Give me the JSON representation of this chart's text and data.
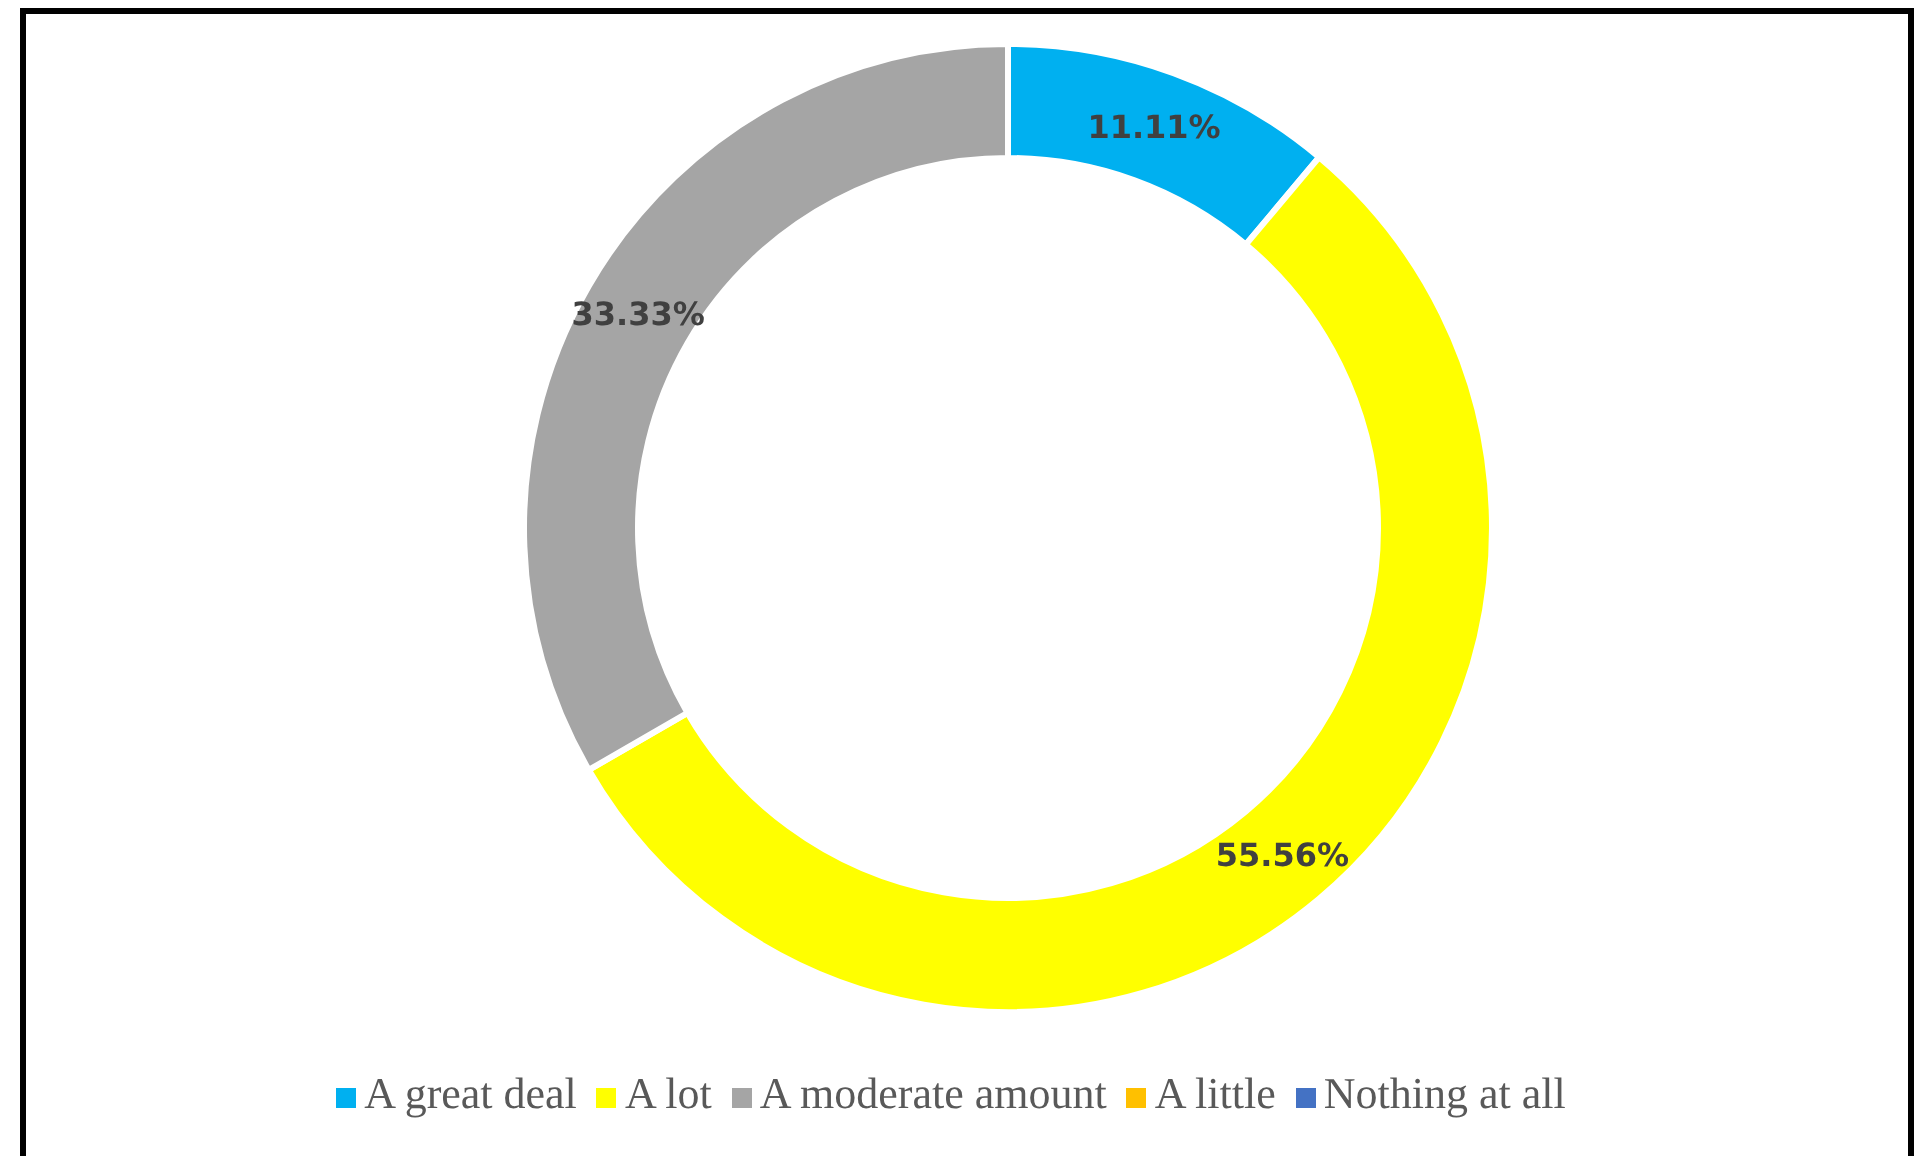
{
  "chart_data": {
    "type": "donut",
    "categories": [
      "A great deal",
      "A lot",
      "A moderate amount",
      "A little",
      "Nothing at all"
    ],
    "values": [
      11.11,
      55.56,
      33.33,
      0,
      0
    ],
    "colors": [
      "#00b0f0",
      "#ffff00",
      "#a5a5a5",
      "#ffc000",
      "#4472c4"
    ],
    "value_labels": [
      "11.11%",
      "55.56%",
      "33.33%",
      null,
      null
    ],
    "legend": "bottom"
  }
}
